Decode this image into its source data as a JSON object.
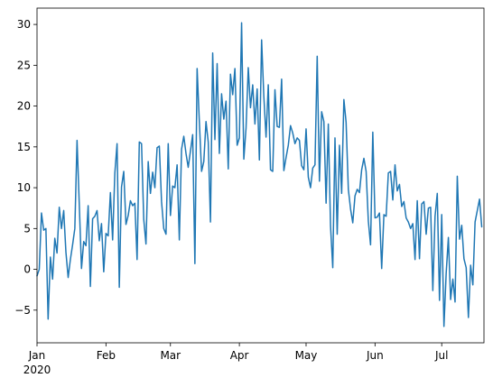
{
  "chart_data": {
    "type": "line",
    "title": "",
    "xlabel": "",
    "ylabel": "",
    "x_start": "2020-01-01",
    "x_end": "2020-07-20",
    "xlim": [
      "2020-01-01",
      "2020-07-20"
    ],
    "ylim": [
      -9,
      32
    ],
    "grid": false,
    "legend": "none",
    "x_ticks": [
      {
        "date": "2020-01-01",
        "label": "Jan",
        "sublabel": "2020"
      },
      {
        "date": "2020-02-01",
        "label": "Feb"
      },
      {
        "date": "2020-03-01",
        "label": "Mar"
      },
      {
        "date": "2020-04-01",
        "label": "Apr"
      },
      {
        "date": "2020-05-01",
        "label": "May"
      },
      {
        "date": "2020-06-01",
        "label": "Jun"
      },
      {
        "date": "2020-07-01",
        "label": "Jul"
      }
    ],
    "y_ticks": [
      {
        "value": -5,
        "label": "−5"
      },
      {
        "value": 0,
        "label": "0"
      },
      {
        "value": 5,
        "label": "5"
      },
      {
        "value": 10,
        "label": "10"
      },
      {
        "value": 15,
        "label": "15"
      },
      {
        "value": 20,
        "label": "20"
      },
      {
        "value": 25,
        "label": "25"
      },
      {
        "value": 30,
        "label": "30"
      }
    ],
    "series": [
      {
        "color": "#1f77b4",
        "points": [
          [
            "2020-01-01",
            -0.8
          ],
          [
            "2020-01-02",
            0.0
          ],
          [
            "2020-01-03",
            6.9
          ],
          [
            "2020-01-04",
            4.8
          ],
          [
            "2020-01-05",
            5.0
          ],
          [
            "2020-01-06",
            -6.1
          ],
          [
            "2020-01-07",
            1.5
          ],
          [
            "2020-01-08",
            -1.2
          ],
          [
            "2020-01-09",
            3.8
          ],
          [
            "2020-01-10",
            2.0
          ],
          [
            "2020-01-11",
            7.6
          ],
          [
            "2020-01-12",
            5.0
          ],
          [
            "2020-01-13",
            7.2
          ],
          [
            "2020-01-14",
            2.1
          ],
          [
            "2020-01-15",
            -1.0
          ],
          [
            "2020-01-16",
            1.2
          ],
          [
            "2020-01-17",
            3.0
          ],
          [
            "2020-01-18",
            5.0
          ],
          [
            "2020-01-19",
            15.8
          ],
          [
            "2020-01-20",
            8.0
          ],
          [
            "2020-01-21",
            0.1
          ],
          [
            "2020-01-22",
            3.4
          ],
          [
            "2020-01-23",
            2.9
          ],
          [
            "2020-01-24",
            7.8
          ],
          [
            "2020-01-25",
            -2.1
          ],
          [
            "2020-01-26",
            6.2
          ],
          [
            "2020-01-27",
            6.5
          ],
          [
            "2020-01-28",
            7.2
          ],
          [
            "2020-01-29",
            3.5
          ],
          [
            "2020-01-30",
            5.6
          ],
          [
            "2020-01-31",
            -0.3
          ],
          [
            "2020-02-01",
            4.4
          ],
          [
            "2020-02-02",
            4.1
          ],
          [
            "2020-02-03",
            9.4
          ],
          [
            "2020-02-04",
            3.6
          ],
          [
            "2020-02-05",
            11.8
          ],
          [
            "2020-02-06",
            15.4
          ],
          [
            "2020-02-07",
            -2.2
          ],
          [
            "2020-02-08",
            10.1
          ],
          [
            "2020-02-09",
            12.0
          ],
          [
            "2020-02-10",
            5.5
          ],
          [
            "2020-02-11",
            6.6
          ],
          [
            "2020-02-12",
            8.4
          ],
          [
            "2020-02-13",
            7.8
          ],
          [
            "2020-02-14",
            8.1
          ],
          [
            "2020-02-15",
            1.2
          ],
          [
            "2020-02-16",
            15.6
          ],
          [
            "2020-02-17",
            15.4
          ],
          [
            "2020-02-18",
            6.1
          ],
          [
            "2020-02-19",
            3.1
          ],
          [
            "2020-02-20",
            13.2
          ],
          [
            "2020-02-21",
            9.3
          ],
          [
            "2020-02-22",
            11.9
          ],
          [
            "2020-02-23",
            10.0
          ],
          [
            "2020-02-24",
            14.9
          ],
          [
            "2020-02-25",
            15.1
          ],
          [
            "2020-02-26",
            8.3
          ],
          [
            "2020-02-27",
            5.0
          ],
          [
            "2020-02-28",
            4.3
          ],
          [
            "2020-02-29",
            15.4
          ],
          [
            "2020-03-01",
            6.6
          ],
          [
            "2020-03-02",
            10.2
          ],
          [
            "2020-03-03",
            10.0
          ],
          [
            "2020-03-04",
            12.8
          ],
          [
            "2020-03-05",
            3.6
          ],
          [
            "2020-03-06",
            14.7
          ],
          [
            "2020-03-07",
            16.3
          ],
          [
            "2020-03-08",
            14.2
          ],
          [
            "2020-03-09",
            12.5
          ],
          [
            "2020-03-10",
            14.5
          ],
          [
            "2020-03-11",
            16.5
          ],
          [
            "2020-03-12",
            0.7
          ],
          [
            "2020-03-13",
            24.6
          ],
          [
            "2020-03-14",
            18.1
          ],
          [
            "2020-03-15",
            12.0
          ],
          [
            "2020-03-16",
            13.2
          ],
          [
            "2020-03-17",
            18.1
          ],
          [
            "2020-03-18",
            15.6
          ],
          [
            "2020-03-19",
            5.8
          ],
          [
            "2020-03-20",
            26.5
          ],
          [
            "2020-03-21",
            15.9
          ],
          [
            "2020-03-22",
            25.2
          ],
          [
            "2020-03-23",
            14.2
          ],
          [
            "2020-03-24",
            21.5
          ],
          [
            "2020-03-25",
            18.4
          ],
          [
            "2020-03-26",
            20.6
          ],
          [
            "2020-03-27",
            12.3
          ],
          [
            "2020-03-28",
            23.9
          ],
          [
            "2020-03-29",
            21.4
          ],
          [
            "2020-03-30",
            24.6
          ],
          [
            "2020-03-31",
            15.2
          ],
          [
            "2020-04-01",
            16.1
          ],
          [
            "2020-04-02",
            30.2
          ],
          [
            "2020-04-03",
            13.5
          ],
          [
            "2020-04-04",
            17.3
          ],
          [
            "2020-04-05",
            24.7
          ],
          [
            "2020-04-06",
            19.8
          ],
          [
            "2020-04-07",
            22.6
          ],
          [
            "2020-04-08",
            17.8
          ],
          [
            "2020-04-09",
            22.1
          ],
          [
            "2020-04-10",
            13.4
          ],
          [
            "2020-04-11",
            28.1
          ],
          [
            "2020-04-12",
            21.2
          ],
          [
            "2020-04-13",
            16.2
          ],
          [
            "2020-04-14",
            22.6
          ],
          [
            "2020-04-15",
            12.2
          ],
          [
            "2020-04-16",
            12.0
          ],
          [
            "2020-04-17",
            22.0
          ],
          [
            "2020-04-18",
            17.5
          ],
          [
            "2020-04-19",
            17.4
          ],
          [
            "2020-04-20",
            23.3
          ],
          [
            "2020-04-21",
            12.1
          ],
          [
            "2020-04-22",
            13.7
          ],
          [
            "2020-04-23",
            15.2
          ],
          [
            "2020-04-24",
            17.6
          ],
          [
            "2020-04-25",
            16.7
          ],
          [
            "2020-04-26",
            15.4
          ],
          [
            "2020-04-27",
            16.1
          ],
          [
            "2020-04-28",
            15.8
          ],
          [
            "2020-04-29",
            12.7
          ],
          [
            "2020-04-30",
            12.2
          ],
          [
            "2020-05-01",
            17.2
          ],
          [
            "2020-05-02",
            11.3
          ],
          [
            "2020-05-03",
            10.0
          ],
          [
            "2020-05-04",
            12.4
          ],
          [
            "2020-05-05",
            12.8
          ],
          [
            "2020-05-06",
            26.1
          ],
          [
            "2020-05-07",
            10.8
          ],
          [
            "2020-05-08",
            19.3
          ],
          [
            "2020-05-09",
            18.1
          ],
          [
            "2020-05-10",
            8.1
          ],
          [
            "2020-05-11",
            17.8
          ],
          [
            "2020-05-12",
            5.3
          ],
          [
            "2020-05-13",
            0.2
          ],
          [
            "2020-05-14",
            16.1
          ],
          [
            "2020-05-15",
            4.3
          ],
          [
            "2020-05-16",
            15.2
          ],
          [
            "2020-05-17",
            9.3
          ],
          [
            "2020-05-18",
            20.8
          ],
          [
            "2020-05-19",
            18.0
          ],
          [
            "2020-05-20",
            9.8
          ],
          [
            "2020-05-21",
            7.4
          ],
          [
            "2020-05-22",
            5.7
          ],
          [
            "2020-05-23",
            9.0
          ],
          [
            "2020-05-24",
            9.8
          ],
          [
            "2020-05-25",
            9.4
          ],
          [
            "2020-05-26",
            12.2
          ],
          [
            "2020-05-27",
            13.6
          ],
          [
            "2020-05-28",
            12.0
          ],
          [
            "2020-05-29",
            5.9
          ],
          [
            "2020-05-30",
            3.0
          ],
          [
            "2020-05-31",
            16.8
          ],
          [
            "2020-06-01",
            6.3
          ],
          [
            "2020-06-02",
            6.4
          ],
          [
            "2020-06-03",
            6.9
          ],
          [
            "2020-06-04",
            0.1
          ],
          [
            "2020-06-05",
            6.7
          ],
          [
            "2020-06-06",
            6.5
          ],
          [
            "2020-06-07",
            11.8
          ],
          [
            "2020-06-08",
            12.0
          ],
          [
            "2020-06-09",
            8.5
          ],
          [
            "2020-06-10",
            12.8
          ],
          [
            "2020-06-11",
            9.6
          ],
          [
            "2020-06-12",
            10.4
          ],
          [
            "2020-06-13",
            7.7
          ],
          [
            "2020-06-14",
            8.3
          ],
          [
            "2020-06-15",
            6.3
          ],
          [
            "2020-06-16",
            5.8
          ],
          [
            "2020-06-17",
            5.0
          ],
          [
            "2020-06-18",
            5.6
          ],
          [
            "2020-06-19",
            1.2
          ],
          [
            "2020-06-20",
            8.4
          ],
          [
            "2020-06-21",
            1.3
          ],
          [
            "2020-06-22",
            8.0
          ],
          [
            "2020-06-23",
            8.3
          ],
          [
            "2020-06-24",
            4.3
          ],
          [
            "2020-06-25",
            7.5
          ],
          [
            "2020-06-26",
            7.6
          ],
          [
            "2020-06-27",
            -2.6
          ],
          [
            "2020-06-28",
            6.5
          ],
          [
            "2020-06-29",
            9.3
          ],
          [
            "2020-06-30",
            -3.8
          ],
          [
            "2020-07-01",
            6.7
          ],
          [
            "2020-07-02",
            -7.0
          ],
          [
            "2020-07-03",
            -0.5
          ],
          [
            "2020-07-04",
            3.9
          ],
          [
            "2020-07-05",
            -3.7
          ],
          [
            "2020-07-06",
            -1.2
          ],
          [
            "2020-07-07",
            -4.0
          ],
          [
            "2020-07-08",
            11.4
          ],
          [
            "2020-07-09",
            3.7
          ],
          [
            "2020-07-10",
            5.4
          ],
          [
            "2020-07-11",
            1.3
          ],
          [
            "2020-07-12",
            0.2
          ],
          [
            "2020-07-13",
            -5.9
          ],
          [
            "2020-07-14",
            0.5
          ],
          [
            "2020-07-15",
            -1.9
          ],
          [
            "2020-07-16",
            5.8
          ],
          [
            "2020-07-17",
            7.2
          ],
          [
            "2020-07-18",
            8.6
          ],
          [
            "2020-07-19",
            5.2
          ]
        ]
      }
    ]
  }
}
